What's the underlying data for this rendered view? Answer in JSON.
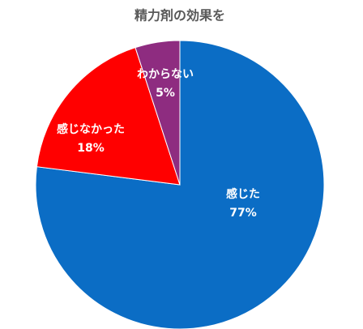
{
  "chart_data": {
    "type": "pie",
    "title": "精力剤の効果を",
    "categories": [
      "感じた",
      "感じなかった",
      "わからない"
    ],
    "values": [
      77,
      18,
      5
    ],
    "value_labels": [
      "77%",
      "18%",
      "5%"
    ],
    "colors": [
      "#0b6dc5",
      "#ff0000",
      "#8e2c80"
    ]
  }
}
